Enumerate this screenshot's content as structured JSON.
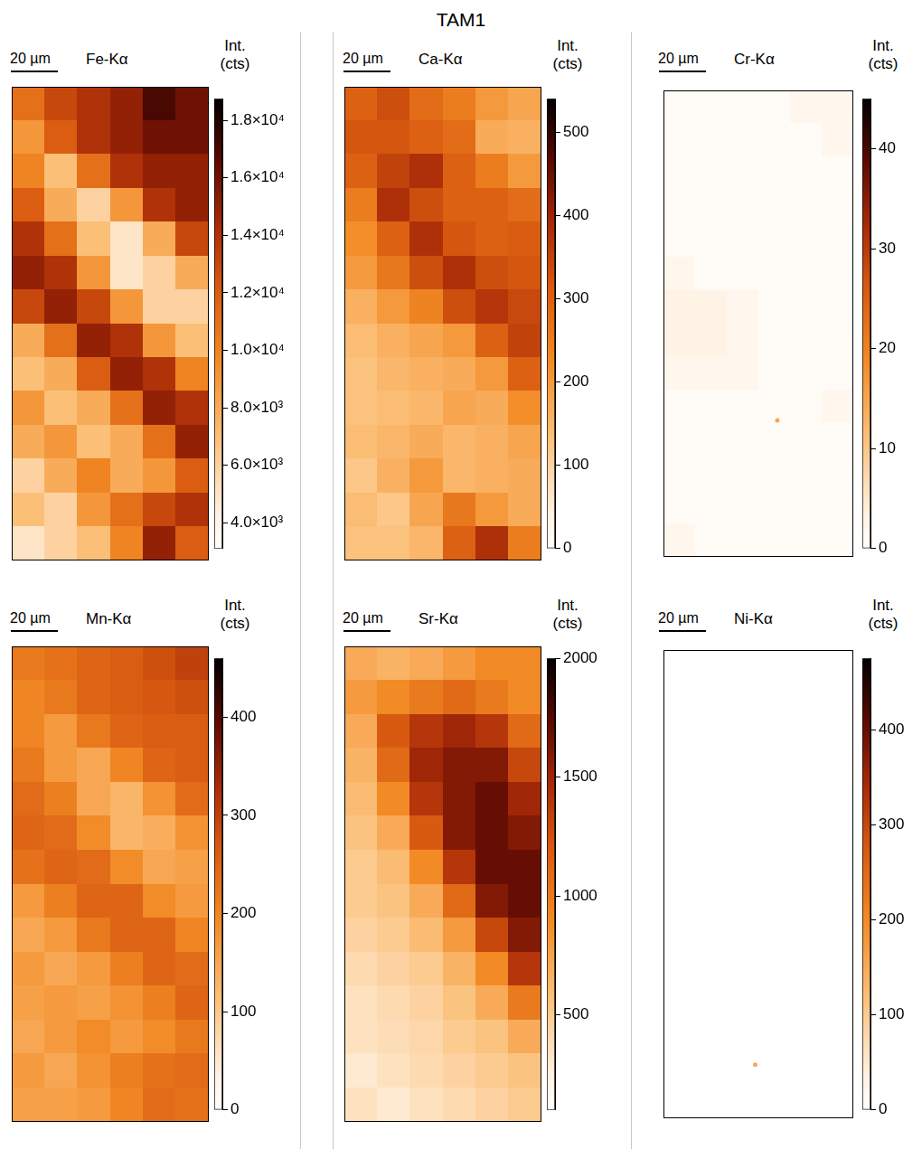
{
  "title": "TAM1",
  "chart_data": [
    {
      "type": "heatmap",
      "title": "Fe-Kα",
      "scale_bar": "20 µm",
      "colorbar_label": "Int. (cts)",
      "colorbar_lim": [
        3100,
        18750
      ],
      "colorbar_ticks": [
        {
          "value": 4000,
          "label": "4.0×10³"
        },
        {
          "value": 6000,
          "label": "6.0×10³"
        },
        {
          "value": 8000,
          "label": "8.0×10³"
        },
        {
          "value": 10000,
          "label": "1.0×10⁴"
        },
        {
          "value": 12000,
          "label": "1.2×10⁴"
        },
        {
          "value": 14000,
          "label": "1.4×10⁴"
        },
        {
          "value": 16000,
          "label": "1.6×10⁴"
        },
        {
          "value": 18000,
          "label": "1.8×10⁴"
        }
      ],
      "cells": [
        [
          11000,
          13000,
          14000,
          15000,
          17000,
          16000
        ],
        [
          9000,
          12000,
          14000,
          15000,
          16000,
          16000
        ],
        [
          10000,
          7000,
          11000,
          14000,
          15000,
          15000
        ],
        [
          12000,
          8000,
          6000,
          9000,
          14000,
          15000
        ],
        [
          14000,
          11000,
          7000,
          5000,
          8000,
          13000
        ],
        [
          15000,
          14000,
          9000,
          5000,
          6000,
          8000
        ],
        [
          13000,
          15000,
          13000,
          9000,
          6000,
          6000
        ],
        [
          8000,
          11000,
          15000,
          14000,
          9000,
          7000
        ],
        [
          7000,
          8000,
          12000,
          15000,
          14000,
          10000
        ],
        [
          9000,
          7000,
          8000,
          11000,
          15000,
          14000
        ],
        [
          8000,
          9000,
          7000,
          8000,
          11000,
          15000
        ],
        [
          6000,
          8000,
          10000,
          8000,
          9000,
          12000
        ],
        [
          7000,
          6000,
          9000,
          11000,
          13000,
          14000
        ],
        [
          5000,
          6000,
          7000,
          10000,
          15000,
          12000
        ]
      ],
      "spots": []
    },
    {
      "type": "heatmap",
      "title": "Ca-Kα",
      "scale_bar": "20 µm",
      "colorbar_label": "Int. (cts)",
      "colorbar_lim": [
        0,
        540
      ],
      "colorbar_ticks": [
        0,
        100,
        200,
        300,
        400,
        500
      ],
      "cells": [
        [
          300,
          330,
          280,
          250,
          200,
          180
        ],
        [
          320,
          320,
          300,
          280,
          170,
          160
        ],
        [
          300,
          350,
          380,
          300,
          250,
          200
        ],
        [
          250,
          380,
          330,
          300,
          300,
          280
        ],
        [
          220,
          300,
          380,
          320,
          300,
          310
        ],
        [
          200,
          260,
          330,
          380,
          330,
          320
        ],
        [
          160,
          200,
          240,
          330,
          370,
          340
        ],
        [
          140,
          160,
          180,
          200,
          300,
          350
        ],
        [
          130,
          150,
          160,
          170,
          200,
          300
        ],
        [
          130,
          140,
          150,
          180,
          170,
          220
        ],
        [
          140,
          150,
          170,
          150,
          160,
          180
        ],
        [
          120,
          160,
          200,
          150,
          160,
          170
        ],
        [
          140,
          120,
          180,
          260,
          200,
          170
        ],
        [
          130,
          130,
          150,
          300,
          380,
          250
        ]
      ],
      "spots": []
    },
    {
      "type": "heatmap",
      "title": "Cr-Kα",
      "scale_bar": "20 µm",
      "colorbar_label": "Int. (cts)",
      "colorbar_lim": [
        0,
        45
      ],
      "colorbar_ticks": [
        0,
        10,
        20,
        30,
        40
      ],
      "cells": [
        [
          1,
          1,
          1,
          1,
          2,
          2
        ],
        [
          1,
          1,
          1,
          1,
          1,
          2
        ],
        [
          1,
          1,
          1,
          1,
          1,
          1
        ],
        [
          1,
          1,
          1,
          1,
          1,
          1
        ],
        [
          1,
          1,
          1,
          1,
          1,
          1
        ],
        [
          2,
          1,
          1,
          1,
          1,
          1
        ],
        [
          3,
          3,
          2,
          1,
          1,
          1
        ],
        [
          3,
          3,
          2,
          1,
          1,
          1
        ],
        [
          2,
          2,
          2,
          1,
          1,
          1
        ],
        [
          1,
          1,
          1,
          1,
          1,
          2
        ],
        [
          1,
          1,
          1,
          1,
          1,
          1
        ],
        [
          1,
          1,
          1,
          1,
          1,
          1
        ],
        [
          1,
          1,
          1,
          1,
          1,
          1
        ],
        [
          2,
          1,
          1,
          1,
          1,
          1
        ]
      ],
      "spots": [
        {
          "x": 3.6,
          "y": 9.9,
          "value": 15
        }
      ]
    },
    {
      "type": "heatmap",
      "title": "Mn-Kα",
      "scale_bar": "20 µm",
      "colorbar_label": "Int. (cts)",
      "colorbar_lim": [
        0,
        460
      ],
      "colorbar_ticks": [
        0,
        100,
        200,
        300,
        400
      ],
      "cells": [
        [
          220,
          230,
          250,
          260,
          280,
          300
        ],
        [
          200,
          220,
          250,
          260,
          270,
          280
        ],
        [
          200,
          170,
          220,
          250,
          260,
          260
        ],
        [
          220,
          170,
          150,
          200,
          250,
          260
        ],
        [
          240,
          210,
          150,
          130,
          180,
          240
        ],
        [
          250,
          240,
          190,
          130,
          140,
          180
        ],
        [
          230,
          250,
          240,
          190,
          150,
          160
        ],
        [
          170,
          210,
          250,
          250,
          190,
          170
        ],
        [
          150,
          170,
          220,
          250,
          250,
          200
        ],
        [
          170,
          150,
          170,
          210,
          250,
          240
        ],
        [
          160,
          170,
          160,
          180,
          210,
          250
        ],
        [
          150,
          170,
          190,
          170,
          190,
          220
        ],
        [
          170,
          150,
          180,
          210,
          230,
          240
        ],
        [
          160,
          160,
          170,
          200,
          240,
          230
        ]
      ],
      "spots": []
    },
    {
      "type": "heatmap",
      "title": "Sr-Kα",
      "scale_bar": "20 µm",
      "colorbar_label": "Int. (cts)",
      "colorbar_lim": [
        100,
        2000
      ],
      "colorbar_ticks": [
        500,
        1000,
        1500,
        2000
      ],
      "cells": [
        [
          700,
          650,
          700,
          800,
          900,
          900
        ],
        [
          800,
          900,
          1000,
          1100,
          1000,
          900
        ],
        [
          700,
          1200,
          1400,
          1500,
          1400,
          1100
        ],
        [
          650,
          1100,
          1500,
          1600,
          1600,
          1300
        ],
        [
          600,
          900,
          1400,
          1600,
          1700,
          1500
        ],
        [
          550,
          700,
          1200,
          1600,
          1700,
          1600
        ],
        [
          500,
          600,
          900,
          1400,
          1700,
          1700
        ],
        [
          500,
          550,
          700,
          1100,
          1600,
          1700
        ],
        [
          450,
          500,
          600,
          800,
          1300,
          1600
        ],
        [
          400,
          450,
          500,
          650,
          900,
          1400
        ],
        [
          350,
          400,
          450,
          550,
          700,
          1000
        ],
        [
          350,
          380,
          420,
          500,
          550,
          700
        ],
        [
          300,
          350,
          400,
          450,
          500,
          550
        ],
        [
          350,
          300,
          350,
          400,
          450,
          500
        ]
      ],
      "spots": []
    },
    {
      "type": "heatmap",
      "title": "Ni-Kα",
      "scale_bar": "20 µm",
      "colorbar_label": "Int. (cts)",
      "colorbar_lim": [
        0,
        475
      ],
      "colorbar_ticks": [
        0,
        100,
        200,
        300,
        400
      ],
      "cells": [
        [
          0,
          0,
          0,
          0,
          0,
          0
        ],
        [
          0,
          0,
          0,
          0,
          0,
          0
        ],
        [
          0,
          0,
          0,
          0,
          0,
          0
        ],
        [
          0,
          0,
          0,
          0,
          0,
          0
        ],
        [
          0,
          0,
          0,
          0,
          0,
          0
        ],
        [
          0,
          0,
          0,
          0,
          0,
          0
        ],
        [
          0,
          0,
          0,
          0,
          0,
          0
        ],
        [
          0,
          0,
          0,
          0,
          0,
          0
        ],
        [
          0,
          0,
          0,
          0,
          0,
          0
        ],
        [
          0,
          0,
          0,
          0,
          0,
          0
        ],
        [
          0,
          0,
          0,
          0,
          0,
          0
        ],
        [
          0,
          0,
          0,
          0,
          0,
          0
        ],
        [
          0,
          0,
          0,
          0,
          0,
          0
        ],
        [
          0,
          0,
          0,
          0,
          0,
          0
        ]
      ],
      "spots": [
        {
          "x": 2.9,
          "y": 12.4,
          "value": 150
        }
      ]
    }
  ]
}
